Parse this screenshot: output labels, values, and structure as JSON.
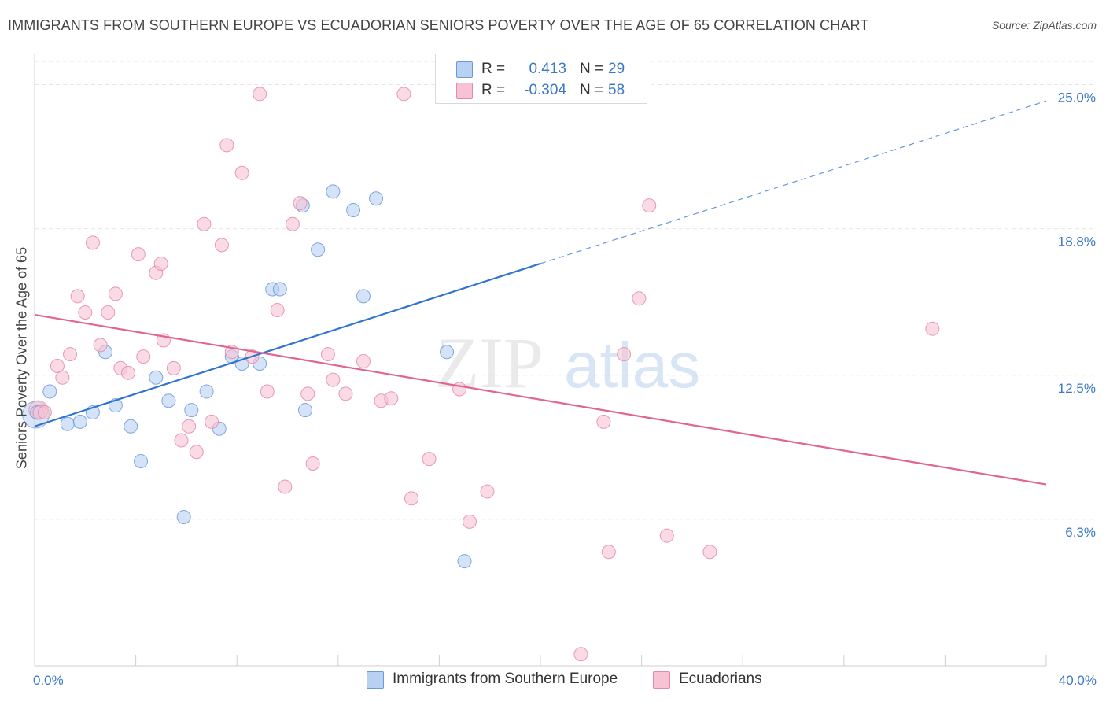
{
  "title": "IMMIGRANTS FROM SOUTHERN EUROPE VS ECUADORIAN SENIORS POVERTY OVER THE AGE OF 65 CORRELATION CHART",
  "source": "Source: ZipAtlas.com",
  "watermark": {
    "zip": "ZIP",
    "atlas": "atlas"
  },
  "legend": {
    "series1": {
      "r_label": "R =",
      "r_value": "0.413",
      "n_label": "N =",
      "n_value": "29"
    },
    "series2": {
      "r_label": "R =",
      "r_value": "-0.304",
      "n_label": "N =",
      "n_value": "58"
    }
  },
  "colors": {
    "blue_fill": "#b8d1f3",
    "blue_stroke": "#6a9ad8",
    "blue_line": "#2f74d0",
    "pink_fill": "#f7c3d4",
    "pink_stroke": "#e48aa9",
    "pink_line": "#e06591",
    "tick_label": "#3b78c8",
    "grid": "#e6e6e6"
  },
  "chart_data": {
    "type": "scatter",
    "title": "IMMIGRANTS FROM SOUTHERN EUROPE VS ECUADORIAN SENIORS POVERTY OVER THE AGE OF 65 CORRELATION CHART",
    "xlabel": "",
    "ylabel": "Seniors Poverty Over the Age of 65",
    "xlim": [
      0,
      40
    ],
    "ylim": [
      0,
      26.0
    ],
    "x_tick_labels": [
      {
        "value": 0,
        "label": "0.0%"
      },
      {
        "value": 40,
        "label": "40.0%"
      }
    ],
    "y_tick_labels": [
      {
        "value": 6.3,
        "label": "6.3%"
      },
      {
        "value": 12.5,
        "label": "12.5%"
      },
      {
        "value": 18.8,
        "label": "18.8%"
      },
      {
        "value": 25.0,
        "label": "25.0%"
      }
    ],
    "grid": true,
    "legend_position": "top-center",
    "series": [
      {
        "name": "Immigrants from Southern Europe",
        "color": "#6a9ad8",
        "points": [
          [
            0.1,
            10.9
          ],
          [
            0.6,
            11.8
          ],
          [
            1.3,
            10.4
          ],
          [
            1.8,
            10.5
          ],
          [
            2.3,
            10.9
          ],
          [
            2.8,
            13.5
          ],
          [
            3.2,
            11.2
          ],
          [
            3.8,
            10.3
          ],
          [
            4.2,
            8.8
          ],
          [
            4.8,
            12.4
          ],
          [
            5.3,
            11.4
          ],
          [
            5.9,
            6.4
          ],
          [
            6.2,
            11.0
          ],
          [
            6.8,
            11.8
          ],
          [
            7.3,
            10.2
          ],
          [
            7.8,
            13.3
          ],
          [
            8.2,
            13.0
          ],
          [
            8.9,
            13.0
          ],
          [
            9.4,
            16.2
          ],
          [
            9.7,
            16.2
          ],
          [
            10.6,
            19.8
          ],
          [
            10.7,
            11.0
          ],
          [
            11.2,
            17.9
          ],
          [
            11.8,
            20.4
          ],
          [
            12.6,
            19.6
          ],
          [
            13.0,
            15.9
          ],
          [
            13.5,
            20.1
          ],
          [
            16.3,
            13.5
          ],
          [
            17.0,
            4.5
          ]
        ],
        "trend": {
          "x": [
            0,
            20
          ],
          "y": [
            10.3,
            17.3
          ],
          "dashed_extension": {
            "x": [
              20,
              40
            ],
            "y": [
              17.3,
              24.3
            ]
          }
        }
      },
      {
        "name": "Ecuadorians",
        "color": "#e48aa9",
        "points": [
          [
            0.2,
            10.9
          ],
          [
            0.4,
            10.9
          ],
          [
            0.9,
            12.9
          ],
          [
            1.1,
            12.4
          ],
          [
            1.4,
            13.4
          ],
          [
            1.7,
            15.9
          ],
          [
            2.0,
            15.2
          ],
          [
            2.3,
            18.2
          ],
          [
            2.6,
            13.8
          ],
          [
            2.9,
            15.2
          ],
          [
            3.2,
            16.0
          ],
          [
            3.4,
            12.8
          ],
          [
            3.7,
            12.6
          ],
          [
            4.1,
            17.7
          ],
          [
            4.3,
            13.3
          ],
          [
            4.8,
            16.9
          ],
          [
            5.0,
            17.3
          ],
          [
            5.1,
            14.0
          ],
          [
            5.5,
            12.8
          ],
          [
            5.8,
            9.7
          ],
          [
            6.1,
            10.3
          ],
          [
            6.4,
            9.2
          ],
          [
            6.7,
            19.0
          ],
          [
            7.0,
            10.5
          ],
          [
            7.4,
            18.1
          ],
          [
            7.6,
            22.4
          ],
          [
            7.8,
            13.5
          ],
          [
            8.2,
            21.2
          ],
          [
            8.6,
            13.3
          ],
          [
            8.9,
            24.6
          ],
          [
            9.2,
            11.8
          ],
          [
            9.6,
            15.3
          ],
          [
            9.9,
            7.7
          ],
          [
            10.2,
            19.0
          ],
          [
            10.5,
            19.9
          ],
          [
            10.8,
            11.7
          ],
          [
            11.0,
            8.7
          ],
          [
            11.6,
            13.4
          ],
          [
            11.8,
            12.3
          ],
          [
            12.3,
            11.7
          ],
          [
            13.0,
            13.1
          ],
          [
            13.7,
            11.4
          ],
          [
            14.1,
            11.5
          ],
          [
            14.6,
            24.6
          ],
          [
            14.9,
            7.2
          ],
          [
            15.6,
            8.9
          ],
          [
            16.8,
            11.9
          ],
          [
            17.2,
            6.2
          ],
          [
            17.9,
            7.5
          ],
          [
            22.5,
            10.5
          ],
          [
            22.7,
            4.9
          ],
          [
            23.3,
            13.4
          ],
          [
            23.9,
            15.8
          ],
          [
            24.3,
            19.8
          ],
          [
            25.0,
            5.6
          ],
          [
            26.7,
            4.9
          ],
          [
            35.5,
            14.5
          ],
          [
            21.6,
            0.5
          ]
        ],
        "trend": {
          "x": [
            0,
            40
          ],
          "y": [
            15.1,
            7.8
          ]
        }
      }
    ]
  }
}
